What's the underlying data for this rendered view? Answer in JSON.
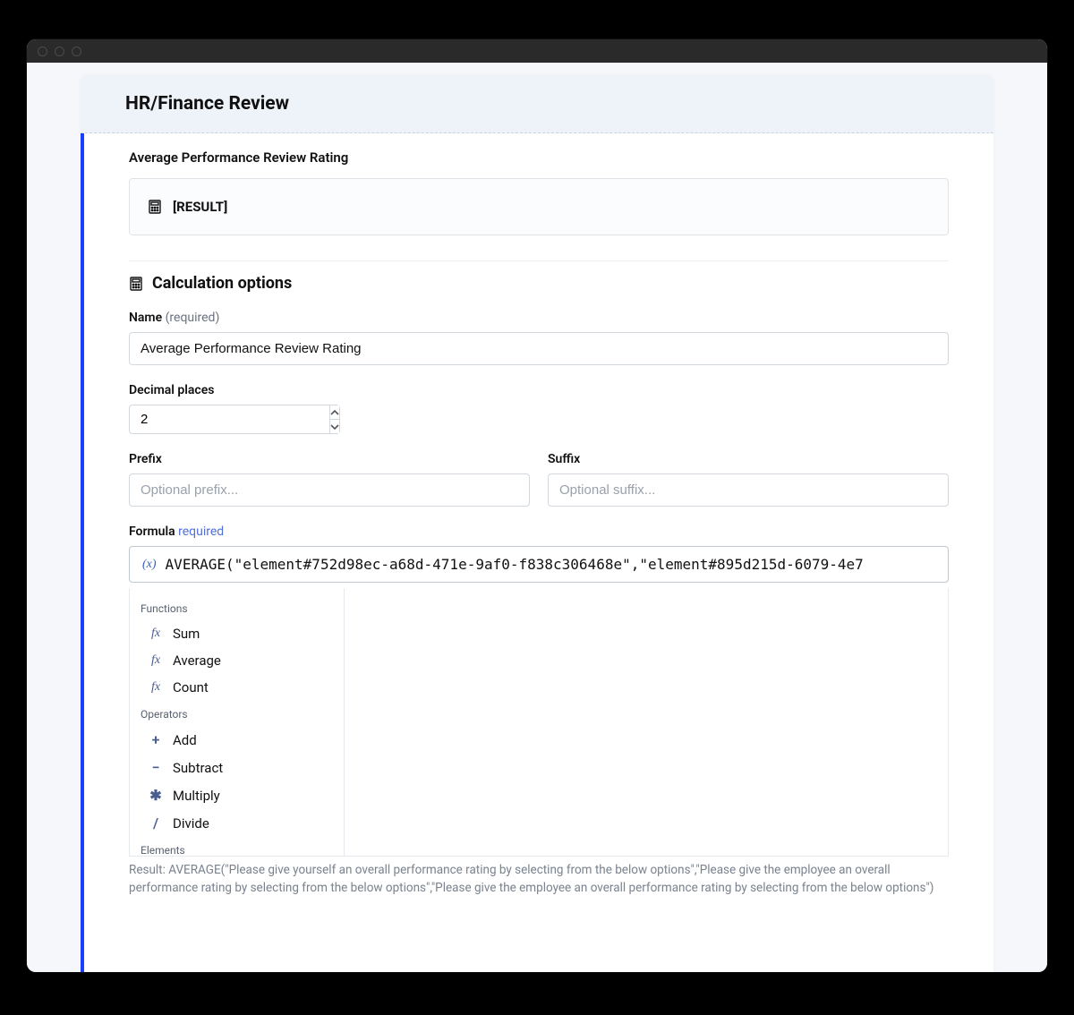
{
  "colors": {
    "accent_border": "#1a3fff",
    "header_bg": "#eef2f9",
    "body_bg": "#f5f7fa",
    "border": "#d3d8de",
    "muted_text": "#7a828e",
    "fx_color": "#4a5d8f"
  },
  "header": {
    "title": "HR/Finance Review"
  },
  "preview": {
    "label": "Average Performance Review Rating",
    "result_placeholder": "[RESULT]"
  },
  "options": {
    "title": "Calculation options",
    "name_label": "Name",
    "name_required": "(required)",
    "name_value": "Average Performance Review Rating",
    "decimal_label": "Decimal places",
    "decimal_value": "2",
    "prefix_label": "Prefix",
    "prefix_placeholder": "Optional prefix...",
    "suffix_label": "Suffix",
    "suffix_placeholder": "Optional suffix...",
    "formula_label": "Formula",
    "formula_required": "required",
    "formula_value": "AVERAGE(\"element#752d98ec-a68d-471e-9af0-f838c306468e\",\"element#895d215d-6079-4e7"
  },
  "suggestions": {
    "functions_title": "Functions",
    "functions": [
      {
        "icon": "fx",
        "label": "Sum"
      },
      {
        "icon": "fx",
        "label": "Average"
      },
      {
        "icon": "fx",
        "label": "Count"
      }
    ],
    "operators_title": "Operators",
    "operators": [
      {
        "icon": "+",
        "label": "Add"
      },
      {
        "icon": "−",
        "label": "Subtract"
      },
      {
        "icon": "✱",
        "label": "Multiply"
      },
      {
        "icon": "/",
        "label": "Divide"
      }
    ],
    "elements_title": "Elements"
  },
  "result_text": "Result: AVERAGE(\"Please give yourself an overall performance rating by selecting from the below options\",\"Please give the employee an overall performance rating by selecting from the below options\",\"Please give the employee an overall performance rating by selecting from the below options\")"
}
